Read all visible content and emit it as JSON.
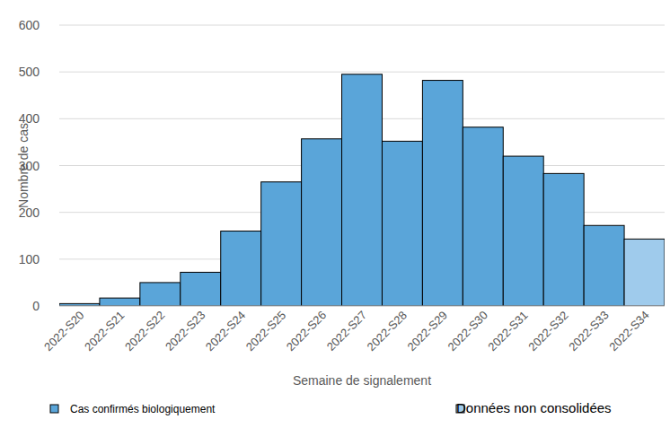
{
  "chart_data": {
    "type": "bar",
    "x_label": "Semaine de signalement",
    "y_label": "Nombre de cas",
    "categories": [
      "2022-S20",
      "2022-S21",
      "2022-S22",
      "2022-S23",
      "2022-S24",
      "2022-S25",
      "2022-S26",
      "2022-S27",
      "2022-S28",
      "2022-S29",
      "2022-S30",
      "2022-S31",
      "2022-S32",
      "2022-S33",
      "2022-S34"
    ],
    "series": [
      {
        "name": "Cas confirmés biologiquement",
        "color": "#5aa5d9",
        "values": [
          5,
          17,
          50,
          72,
          160,
          265,
          357,
          495,
          352,
          482,
          382,
          320,
          283,
          172,
          null
        ]
      },
      {
        "name": "Données non consolidées",
        "color": "#9fcbec",
        "values": [
          null,
          null,
          null,
          null,
          null,
          null,
          null,
          null,
          null,
          null,
          null,
          null,
          null,
          null,
          143
        ]
      }
    ],
    "ylim": [
      0,
      600
    ],
    "yticks": [
      0,
      100,
      200,
      300,
      400,
      500,
      600
    ],
    "grid": true,
    "legend": "bottom"
  }
}
